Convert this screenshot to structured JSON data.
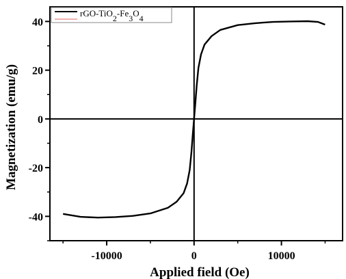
{
  "chart_data": {
    "type": "line",
    "xlabel": "Applied field (Oe)",
    "ylabel": "Magnetization (emu/g)",
    "xlim": [
      -16500,
      17000
    ],
    "ylim": [
      -50,
      46
    ],
    "x_ticks": [
      -10000,
      0,
      10000
    ],
    "x_tick_labels": [
      "-10000",
      "0",
      "10000"
    ],
    "y_ticks": [
      -40,
      -20,
      0,
      20,
      40
    ],
    "y_tick_labels": [
      "-40",
      "-20",
      "0",
      "20",
      "40"
    ],
    "grid": false,
    "zero_lines": true,
    "legend": {
      "placement": "top-left",
      "entries": [
        {
          "parts": [
            {
              "t": "rGO-TiO",
              "sub": false
            },
            {
              "t": "2",
              "sub": true
            },
            {
              "t": "-Fe",
              "sub": false
            },
            {
              "t": "3",
              "sub": true
            },
            {
              "t": "O",
              "sub": false
            },
            {
              "t": "4",
              "sub": true
            }
          ]
        }
      ]
    },
    "series": [
      {
        "name": "rGO-TiO2-Fe3O4",
        "color": "#000000",
        "x": [
          -15000,
          -13000,
          -11000,
          -9000,
          -7000,
          -5000,
          -3000,
          -2000,
          -1200,
          -800,
          -500,
          -300,
          -150,
          0,
          150,
          300,
          500,
          800,
          1200,
          2000,
          3000,
          5000,
          7000,
          9000,
          11000,
          13000,
          14200,
          15000
        ],
        "y": [
          -39.0,
          -40.2,
          -40.5,
          -40.3,
          -39.8,
          -38.8,
          -36.5,
          -34.0,
          -30.5,
          -26.5,
          -21.0,
          -13.5,
          -6.5,
          0,
          6.5,
          13.5,
          21.0,
          26.5,
          30.5,
          34.0,
          36.5,
          38.5,
          39.3,
          39.8,
          40.0,
          40.1,
          39.8,
          38.7
        ]
      }
    ]
  }
}
